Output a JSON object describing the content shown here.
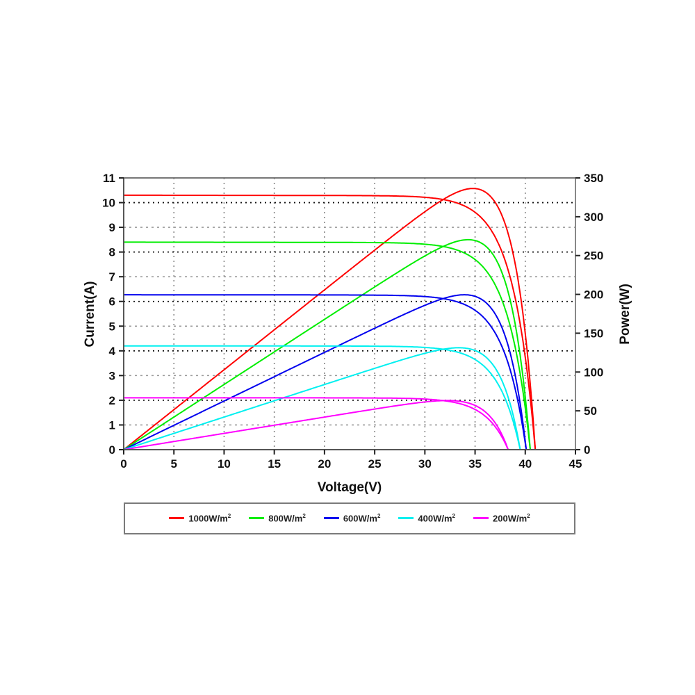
{
  "chart_data": {
    "type": "line",
    "title": "",
    "xlabel": "Voltage(V)",
    "ylabel": "Current(A)",
    "y2label": "Power(W)",
    "xlim": [
      0,
      45
    ],
    "ylim": [
      0,
      11
    ],
    "y2lim": [
      0,
      350
    ],
    "grid": true,
    "legend_position": "bottom (outside, boxed)",
    "x_ticks": [
      0,
      5,
      10,
      15,
      20,
      25,
      30,
      35,
      40,
      45
    ],
    "y_ticks": [
      0,
      1,
      2,
      3,
      4,
      5,
      6,
      7,
      8,
      9,
      10,
      11
    ],
    "y2_ticks": [
      0,
      50,
      100,
      150,
      200,
      250,
      300,
      350
    ],
    "series": [
      {
        "name": "1000W/m2",
        "irradiance": 1000,
        "color": "#ff0000",
        "isc": 10.3,
        "voc": 41.0,
        "vmp": 33.0,
        "imp": 9.7,
        "pmax": 320
      },
      {
        "name": "800W/m2",
        "irradiance": 800,
        "color": "#00ee00",
        "isc": 8.4,
        "voc": 40.5,
        "vmp": 33.0,
        "imp": 7.9,
        "pmax": 262
      },
      {
        "name": "600W/m2",
        "irradiance": 600,
        "color": "#0000ee",
        "isc": 6.27,
        "voc": 40.1,
        "vmp": 33.0,
        "imp": 5.95,
        "pmax": 197
      },
      {
        "name": "400W/m2",
        "irradiance": 400,
        "color": "#00f0f0",
        "isc": 4.2,
        "voc": 39.5,
        "vmp": 32.5,
        "imp": 4.0,
        "pmax": 130
      },
      {
        "name": "200W/m2",
        "irradiance": 200,
        "color": "#ff00ff",
        "isc": 2.1,
        "voc": 38.3,
        "vmp": 31.5,
        "imp": 2.0,
        "pmax": 63
      }
    ],
    "annotations": []
  },
  "legend": {
    "items": [
      {
        "label": "1000W/m",
        "sup": "2",
        "color": "#ff0000"
      },
      {
        "label": "800W/m",
        "sup": "2",
        "color": "#00ee00"
      },
      {
        "label": "600W/m",
        "sup": "2",
        "color": "#0000ee"
      },
      {
        "label": "400W/m",
        "sup": "2",
        "color": "#00f0f0"
      },
      {
        "label": "200W/m",
        "sup": "2",
        "color": "#ff00ff"
      }
    ]
  }
}
